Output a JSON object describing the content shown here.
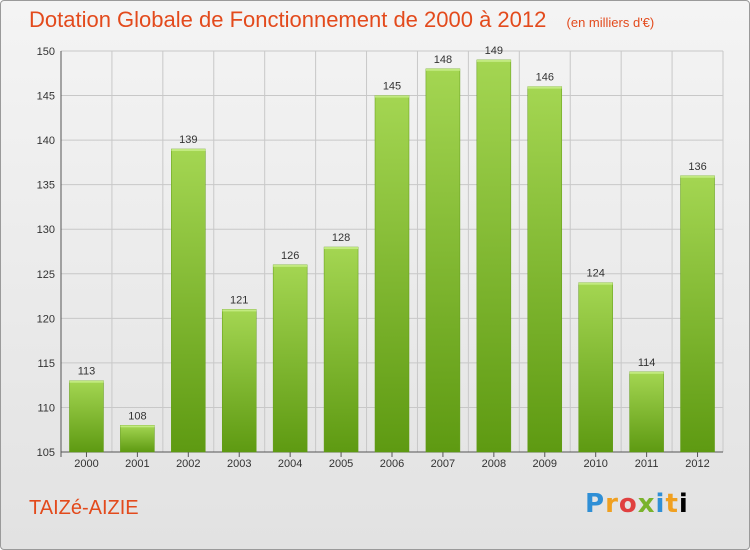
{
  "header": {
    "title": "Dotation Globale de Fonctionnement de 2000 à 2012",
    "unit": "(en milliers d'€)"
  },
  "footer": {
    "commune": "TAIZé-AIZIE",
    "logo_text": "Proxiti"
  },
  "colors": {
    "bar_light": "#a4d652",
    "bar_dark": "#5e9a12",
    "title": "#e34a1c"
  },
  "chart_data": {
    "type": "bar",
    "title": "Dotation Globale de Fonctionnement de 2000 à 2012",
    "subtitle": "(en milliers d'€)",
    "xlabel": "",
    "ylabel": "",
    "categories": [
      "2000",
      "2001",
      "2002",
      "2003",
      "2004",
      "2005",
      "2006",
      "2007",
      "2008",
      "2009",
      "2010",
      "2011",
      "2012"
    ],
    "values": [
      113,
      108,
      139,
      121,
      126,
      128,
      145,
      148,
      149,
      146,
      124,
      114,
      136
    ],
    "ylim": [
      105,
      150
    ],
    "yticks": [
      105,
      110,
      115,
      120,
      125,
      130,
      135,
      140,
      145,
      150
    ],
    "grid": true,
    "data_labels": true
  }
}
